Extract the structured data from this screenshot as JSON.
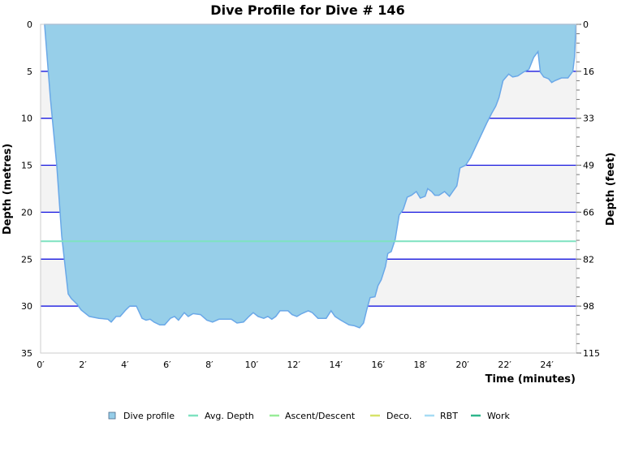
{
  "chart_data": {
    "type": "area",
    "title": "Dive Profile for Dive # 146",
    "xlabel": "Time (minutes)",
    "ylabel": "Depth (metres)",
    "ylabel_right": "Depth (feet)",
    "xlim": [
      0,
      25.4
    ],
    "ylim": [
      0,
      35
    ],
    "y_inverted": true,
    "x_ticks": [
      0,
      2,
      4,
      6,
      8,
      10,
      12,
      14,
      16,
      18,
      20,
      22,
      24
    ],
    "x_tick_labels": [
      "0′",
      "2′",
      "4′",
      "6′",
      "8′",
      "10′",
      "12′",
      "14′",
      "16′",
      "18′",
      "20′",
      "22′",
      "24′"
    ],
    "y_ticks": [
      0,
      5,
      10,
      15,
      20,
      25,
      30,
      35
    ],
    "y_tick_labels": [
      "0",
      "5",
      "10",
      "15",
      "20",
      "25",
      "30",
      "35"
    ],
    "y_right_tick_labels": [
      "0",
      "16",
      "33",
      "49",
      "66",
      "82",
      "98",
      "115"
    ],
    "grid": true,
    "avg_depth": 23.1,
    "legend_position": "bottom",
    "legend": [
      {
        "label": "Dive profile",
        "color": "#95cde8",
        "style": "box"
      },
      {
        "label": "Avg. Depth",
        "color": "#7ee2c0",
        "style": "line"
      },
      {
        "label": "Ascent/Descent",
        "color": "#98ec98",
        "style": "line"
      },
      {
        "label": "Deco.",
        "color": "#d6e36a",
        "style": "line"
      },
      {
        "label": "RBT",
        "color": "#a6dcf4",
        "style": "line"
      },
      {
        "label": "Work",
        "color": "#2fb68c",
        "style": "line"
      }
    ],
    "colors": {
      "fill": "#97cfe9",
      "outline": "#6aa8e8",
      "gridline": "#0000dd",
      "band": "#f3f3f3",
      "avg_line": "#7ee2c0"
    },
    "profile": [
      [
        0.19,
        0
      ],
      [
        0.46,
        7.8
      ],
      [
        0.77,
        15.1
      ],
      [
        1.0,
        22.5
      ],
      [
        1.31,
        28.7
      ],
      [
        1.46,
        29.2
      ],
      [
        1.73,
        29.8
      ],
      [
        1.92,
        30.4
      ],
      [
        2.31,
        31.1
      ],
      [
        2.77,
        31.3
      ],
      [
        3.19,
        31.4
      ],
      [
        3.35,
        31.7
      ],
      [
        3.58,
        31.1
      ],
      [
        3.77,
        31.1
      ],
      [
        4.04,
        30.4
      ],
      [
        4.23,
        30.0
      ],
      [
        4.54,
        30.0
      ],
      [
        4.81,
        31.3
      ],
      [
        5.0,
        31.5
      ],
      [
        5.19,
        31.4
      ],
      [
        5.38,
        31.7
      ],
      [
        5.65,
        32.0
      ],
      [
        5.88,
        32.0
      ],
      [
        6.15,
        31.3
      ],
      [
        6.35,
        31.1
      ],
      [
        6.54,
        31.5
      ],
      [
        6.81,
        30.7
      ],
      [
        7.0,
        31.1
      ],
      [
        7.23,
        30.8
      ],
      [
        7.58,
        30.9
      ],
      [
        7.88,
        31.5
      ],
      [
        8.15,
        31.7
      ],
      [
        8.46,
        31.4
      ],
      [
        9.04,
        31.4
      ],
      [
        9.31,
        31.8
      ],
      [
        9.62,
        31.7
      ],
      [
        9.88,
        31.1
      ],
      [
        10.08,
        30.7
      ],
      [
        10.31,
        31.1
      ],
      [
        10.58,
        31.3
      ],
      [
        10.77,
        31.1
      ],
      [
        10.96,
        31.4
      ],
      [
        11.15,
        31.1
      ],
      [
        11.35,
        30.5
      ],
      [
        11.73,
        30.5
      ],
      [
        11.92,
        30.9
      ],
      [
        12.15,
        31.1
      ],
      [
        12.38,
        30.8
      ],
      [
        12.69,
        30.5
      ],
      [
        12.88,
        30.7
      ],
      [
        13.15,
        31.3
      ],
      [
        13.54,
        31.3
      ],
      [
        13.77,
        30.5
      ],
      [
        13.96,
        31.1
      ],
      [
        14.23,
        31.5
      ],
      [
        14.62,
        32.0
      ],
      [
        14.88,
        32.1
      ],
      [
        15.12,
        32.3
      ],
      [
        15.31,
        31.8
      ],
      [
        15.46,
        30.4
      ],
      [
        15.62,
        29.1
      ],
      [
        15.85,
        29.0
      ],
      [
        16.0,
        27.8
      ],
      [
        16.15,
        27.2
      ],
      [
        16.35,
        25.8
      ],
      [
        16.46,
        24.4
      ],
      [
        16.62,
        24.2
      ],
      [
        16.81,
        22.9
      ],
      [
        17.0,
        20.3
      ],
      [
        17.19,
        19.7
      ],
      [
        17.38,
        18.4
      ],
      [
        17.58,
        18.2
      ],
      [
        17.81,
        17.8
      ],
      [
        18.0,
        18.5
      ],
      [
        18.23,
        18.3
      ],
      [
        18.35,
        17.5
      ],
      [
        18.54,
        17.8
      ],
      [
        18.69,
        18.2
      ],
      [
        18.88,
        18.2
      ],
      [
        19.15,
        17.8
      ],
      [
        19.38,
        18.3
      ],
      [
        19.54,
        17.8
      ],
      [
        19.73,
        17.2
      ],
      [
        19.88,
        15.3
      ],
      [
        20.15,
        15.0
      ],
      [
        20.38,
        14.2
      ],
      [
        21.15,
        10.5
      ],
      [
        21.38,
        9.5
      ],
      [
        21.58,
        8.7
      ],
      [
        21.73,
        7.8
      ],
      [
        21.92,
        6.0
      ],
      [
        22.19,
        5.3
      ],
      [
        22.38,
        5.6
      ],
      [
        22.62,
        5.5
      ],
      [
        22.88,
        5.1
      ],
      [
        23.15,
        4.8
      ],
      [
        23.38,
        3.5
      ],
      [
        23.58,
        2.9
      ],
      [
        23.69,
        5.1
      ],
      [
        23.85,
        5.6
      ],
      [
        24.08,
        5.8
      ],
      [
        24.23,
        6.2
      ],
      [
        24.38,
        6.0
      ],
      [
        24.69,
        5.7
      ],
      [
        25.0,
        5.7
      ],
      [
        25.23,
        5.0
      ],
      [
        25.31,
        3.5
      ],
      [
        25.38,
        0
      ]
    ]
  }
}
